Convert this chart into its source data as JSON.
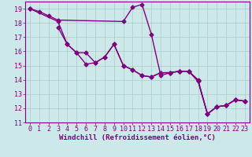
{
  "line1_x": [
    0,
    1,
    2,
    3,
    10,
    11,
    12,
    13,
    14,
    15,
    16,
    17,
    18,
    19,
    20,
    21,
    22,
    23
  ],
  "line1_y": [
    19,
    18.8,
    18.5,
    18.2,
    18.1,
    19.1,
    19.3,
    17.2,
    14.3,
    14.5,
    14.6,
    14.6,
    14.0,
    11.6,
    12.1,
    12.2,
    12.6,
    12.5
  ],
  "line2_x": [
    0,
    3,
    4,
    5,
    6,
    7,
    8,
    9,
    10,
    11,
    12,
    13,
    14,
    15,
    16,
    17,
    18,
    19,
    20,
    21,
    22,
    23
  ],
  "line2_y": [
    19,
    18.1,
    16.5,
    15.9,
    15.9,
    15.2,
    15.6,
    16.5,
    15.0,
    14.7,
    14.3,
    14.2,
    14.5,
    14.5,
    14.6,
    14.6,
    13.9,
    11.6,
    12.1,
    12.2,
    12.6,
    12.5
  ],
  "line3_x": [
    3,
    4,
    5,
    6,
    7,
    8,
    9,
    10,
    11,
    12,
    13,
    14,
    15,
    16,
    17,
    18,
    19,
    20,
    21,
    22,
    23
  ],
  "line3_y": [
    17.7,
    16.5,
    15.9,
    15.1,
    15.2,
    15.6,
    16.5,
    15.0,
    14.7,
    14.3,
    14.2,
    14.5,
    14.5,
    14.6,
    14.6,
    13.9,
    11.6,
    12.1,
    12.2,
    12.6,
    12.5
  ],
  "line_color": "#800080",
  "bg_color": "#cce8e8",
  "grid_color": "#aacccc",
  "xlabel": "Windchill (Refroidissement éolien,°C)",
  "xlim": [
    -0.5,
    23.5
  ],
  "ylim": [
    11,
    19.5
  ],
  "xticks": [
    0,
    1,
    2,
    3,
    4,
    5,
    6,
    7,
    8,
    9,
    10,
    11,
    12,
    13,
    14,
    15,
    16,
    17,
    18,
    19,
    20,
    21,
    22,
    23
  ],
  "yticks": [
    11,
    12,
    13,
    14,
    15,
    16,
    17,
    18,
    19
  ],
  "marker": "D",
  "marker_size": 2.5,
  "line_width": 1.0,
  "xlabel_fontsize": 6.5,
  "tick_fontsize": 6.0
}
